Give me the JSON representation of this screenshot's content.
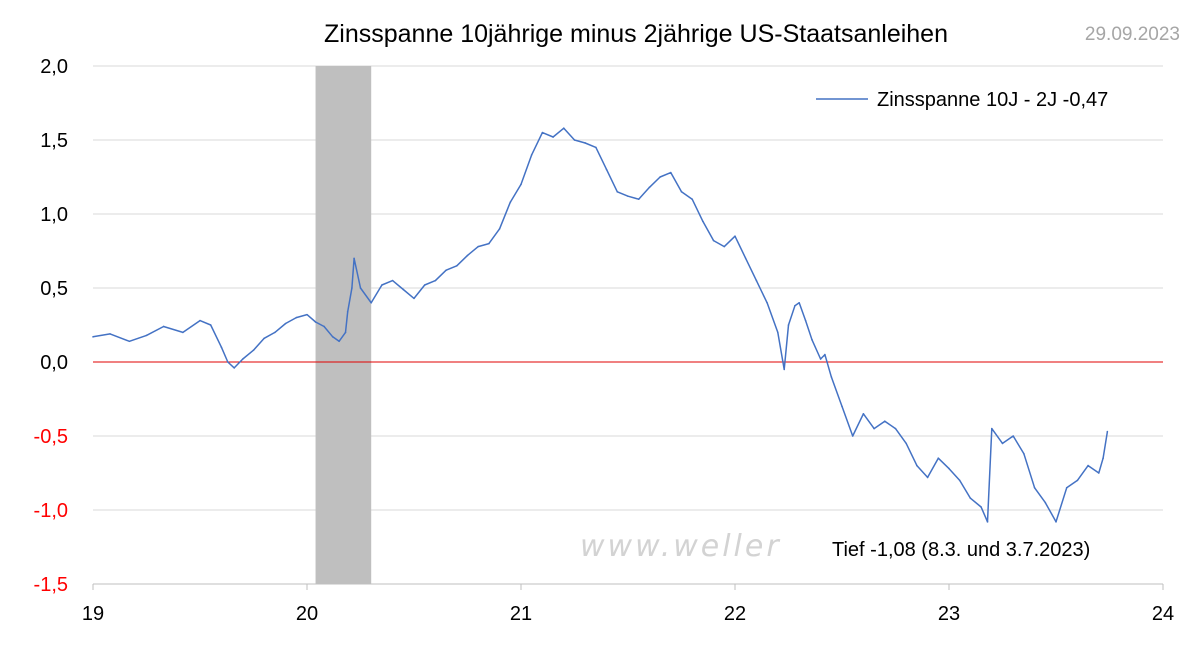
{
  "chart_data": {
    "type": "line",
    "title": "Zinsspanne 10jährige minus 2jährige US-Staatsanleihen",
    "date": "29.09.2023",
    "watermark": "www.weller",
    "xlim": [
      2019,
      2024
    ],
    "ylim": [
      -1.5,
      2.0
    ],
    "grid": true,
    "legend_position": "top-right",
    "x_ticks": [
      {
        "value": 2019,
        "label": "19"
      },
      {
        "value": 2020,
        "label": "20"
      },
      {
        "value": 2021,
        "label": "21"
      },
      {
        "value": 2022,
        "label": "22"
      },
      {
        "value": 2023,
        "label": "23"
      },
      {
        "value": 2024,
        "label": "24"
      }
    ],
    "y_ticks": [
      {
        "value": 2.0,
        "label": "2,0"
      },
      {
        "value": 1.5,
        "label": "1,5"
      },
      {
        "value": 1.0,
        "label": "1,0"
      },
      {
        "value": 0.5,
        "label": "0,5"
      },
      {
        "value": 0.0,
        "label": "0,0"
      },
      {
        "value": -0.5,
        "label": "-0,5"
      },
      {
        "value": -1.0,
        "label": "-1,0"
      },
      {
        "value": -1.5,
        "label": "-1,5"
      }
    ],
    "recession_band": [
      2020.04,
      2020.3
    ],
    "reference_line": 0,
    "annotation": "Tief -1,08 (8.3. und 3.7.2023)",
    "colors": {
      "series": "#4472c4",
      "zero_line": "#e00000",
      "band": "#bfbfbf",
      "grid": "#d9d9d9",
      "negative_tick": "#ff0000",
      "positive_tick": "#000000"
    },
    "series": [
      {
        "name": "Zinsspanne 10J - 2J -0,47",
        "x": [
          2019.0,
          2019.08,
          2019.17,
          2019.25,
          2019.33,
          2019.42,
          2019.5,
          2019.55,
          2019.6,
          2019.63,
          2019.66,
          2019.7,
          2019.75,
          2019.8,
          2019.85,
          2019.9,
          2019.95,
          2020.0,
          2020.04,
          2020.08,
          2020.12,
          2020.15,
          2020.18,
          2020.19,
          2020.21,
          2020.22,
          2020.25,
          2020.3,
          2020.35,
          2020.4,
          2020.45,
          2020.5,
          2020.55,
          2020.6,
          2020.65,
          2020.7,
          2020.75,
          2020.8,
          2020.85,
          2020.9,
          2020.95,
          2021.0,
          2021.05,
          2021.1,
          2021.15,
          2021.2,
          2021.25,
          2021.3,
          2021.35,
          2021.4,
          2021.45,
          2021.5,
          2021.55,
          2021.6,
          2021.65,
          2021.7,
          2021.75,
          2021.8,
          2021.85,
          2021.9,
          2021.95,
          2022.0,
          2022.05,
          2022.1,
          2022.15,
          2022.2,
          2022.23,
          2022.25,
          2022.28,
          2022.3,
          2022.33,
          2022.36,
          2022.4,
          2022.42,
          2022.45,
          2022.5,
          2022.55,
          2022.6,
          2022.65,
          2022.7,
          2022.75,
          2022.8,
          2022.85,
          2022.9,
          2022.95,
          2023.0,
          2023.05,
          2023.1,
          2023.15,
          2023.18,
          2023.2,
          2023.25,
          2023.3,
          2023.35,
          2023.4,
          2023.45,
          2023.5,
          2023.55,
          2023.6,
          2023.65,
          2023.7,
          2023.72,
          2023.74
        ],
        "values": [
          0.17,
          0.19,
          0.14,
          0.18,
          0.24,
          0.2,
          0.28,
          0.25,
          0.1,
          0.0,
          -0.04,
          0.02,
          0.08,
          0.16,
          0.2,
          0.26,
          0.3,
          0.32,
          0.27,
          0.24,
          0.17,
          0.14,
          0.2,
          0.34,
          0.5,
          0.7,
          0.5,
          0.4,
          0.52,
          0.55,
          0.49,
          0.43,
          0.52,
          0.55,
          0.62,
          0.65,
          0.72,
          0.78,
          0.8,
          0.9,
          1.08,
          1.2,
          1.4,
          1.55,
          1.52,
          1.58,
          1.5,
          1.48,
          1.45,
          1.3,
          1.15,
          1.12,
          1.1,
          1.18,
          1.25,
          1.28,
          1.15,
          1.1,
          0.95,
          0.82,
          0.78,
          0.85,
          0.7,
          0.55,
          0.4,
          0.2,
          -0.05,
          0.25,
          0.38,
          0.4,
          0.28,
          0.15,
          0.02,
          0.05,
          -0.1,
          -0.3,
          -0.5,
          -0.35,
          -0.45,
          -0.4,
          -0.45,
          -0.55,
          -0.7,
          -0.78,
          -0.65,
          -0.72,
          -0.8,
          -0.92,
          -0.98,
          -1.08,
          -0.45,
          -0.55,
          -0.5,
          -0.62,
          -0.85,
          -0.95,
          -1.08,
          -0.85,
          -0.8,
          -0.7,
          -0.75,
          -0.65,
          -0.47
        ]
      }
    ]
  }
}
